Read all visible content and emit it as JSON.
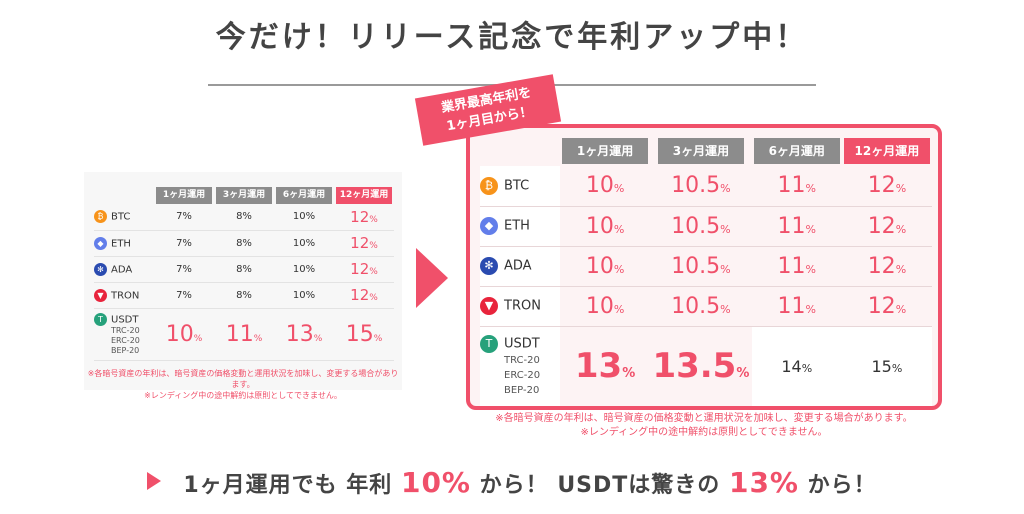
{
  "headline": "今だけ！リリース記念で年利アップ中！",
  "old_table": {
    "headers": [
      "1ヶ月運用",
      "3ヶ月運用",
      "6ヶ月運用",
      "12ヶ月運用"
    ],
    "rows": [
      {
        "coin": "BTC",
        "icon": "bitcoin-icon",
        "v": [
          "7%",
          "8%",
          "10%",
          "12"
        ],
        "unit": "%"
      },
      {
        "coin": "ETH",
        "icon": "ethereum-icon",
        "v": [
          "7%",
          "8%",
          "10%",
          "12"
        ],
        "unit": "%"
      },
      {
        "coin": "ADA",
        "icon": "cardano-icon",
        "v": [
          "7%",
          "8%",
          "10%",
          "12"
        ],
        "unit": "%"
      },
      {
        "coin": "TRON",
        "icon": "tron-icon",
        "v": [
          "7%",
          "8%",
          "10%",
          "12"
        ],
        "unit": "%"
      }
    ],
    "usdt": {
      "coin": "USDT",
      "subs": [
        "TRC-20",
        "ERC-20",
        "BEP-20"
      ],
      "v": [
        "10",
        "11",
        "13",
        "15"
      ],
      "unit": "%"
    },
    "note1": "※各暗号資産の年利は、暗号資産の価格変動と運用状況を加味し、変更する場合があります。",
    "note2": "※レンディング中の途中解約は原則としてできません。"
  },
  "ribbon": {
    "line1": "業界最高年利を",
    "line2": "1ヶ月目から！"
  },
  "new_table": {
    "headers": [
      "1ヶ月運用",
      "3ヶ月運用",
      "6ヶ月運用",
      "12ヶ月運用"
    ],
    "rows": [
      {
        "coin": "BTC",
        "v": [
          "10",
          "10.5",
          "11",
          "12"
        ],
        "unit": "%"
      },
      {
        "coin": "ETH",
        "v": [
          "10",
          "10.5",
          "11",
          "12"
        ],
        "unit": "%"
      },
      {
        "coin": "ADA",
        "v": [
          "10",
          "10.5",
          "11",
          "12"
        ],
        "unit": "%"
      },
      {
        "coin": "TRON",
        "v": [
          "10",
          "10.5",
          "11",
          "12"
        ],
        "unit": "%"
      }
    ],
    "usdt": {
      "coin": "USDT",
      "subs": [
        "TRC-20",
        "ERC-20",
        "BEP-20"
      ],
      "v": [
        "13",
        "13.5",
        "14",
        "15"
      ],
      "unit": "%"
    },
    "note1": "※各暗号資産の年利は、暗号資産の価格変動と運用状況を加味し、変更する場合があります。",
    "note2": "※レンディング中の途中解約は原則としてできません。"
  },
  "bottom": {
    "t1": "1ヶ月運用でも 年利 ",
    "p1": "10%",
    "t2": " から！ USDTは驚きの ",
    "p2": "13%",
    "t3": " から！"
  },
  "colors": {
    "accent": "#f0506a",
    "header_gray": "#8c8c8c"
  }
}
